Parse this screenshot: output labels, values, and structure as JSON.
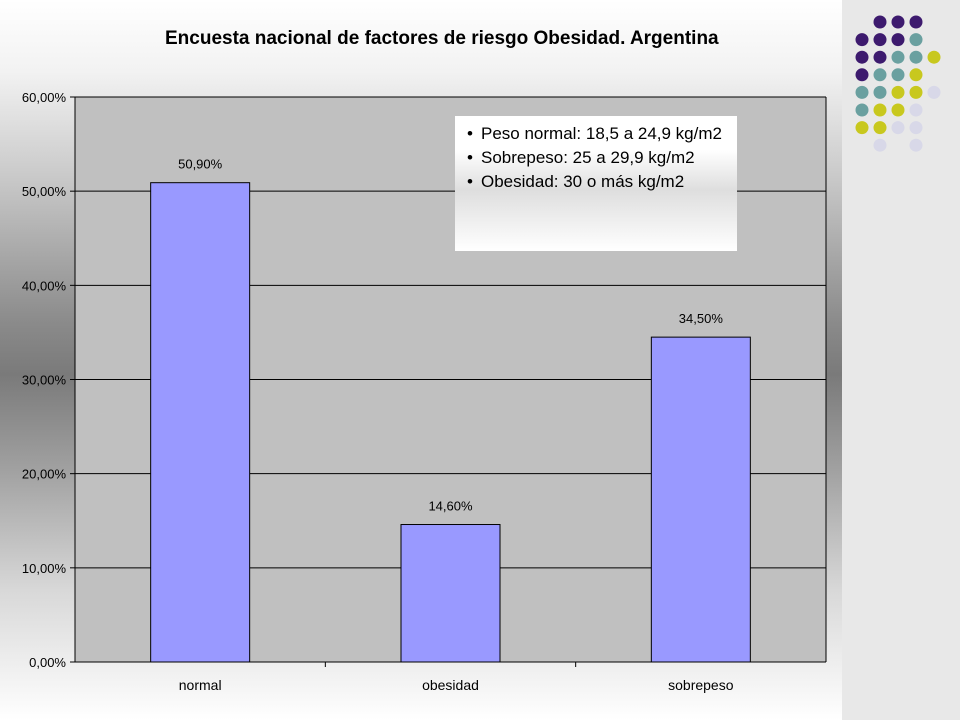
{
  "title": "Encuesta nacional de factores de riesgo Obesidad. Argentina",
  "notes": [
    "Peso normal: 18,5 a 24,9 kg/m2",
    "Sobrepeso: 25 a 29,9 kg/m2",
    "Obesidad: 30 o más kg/m2"
  ],
  "colors": {
    "bar": "#9999ff",
    "plot_bg": "#c0c0c0",
    "dot_purple": "#3d1a6e",
    "dot_teal": "#6aa0a0",
    "dot_yellow": "#c8c81e",
    "dot_lavender": "#d8d8e8"
  },
  "chart_data": {
    "type": "bar",
    "title": "Encuesta nacional de factores de riesgo Obesidad. Argentina",
    "categories": [
      "normal",
      "obesidad",
      "sobrepeso"
    ],
    "values": [
      50.9,
      14.6,
      34.5
    ],
    "data_labels": [
      "50,90%",
      "14,60%",
      "34,50%"
    ],
    "y_ticks": [
      "0,00%",
      "10,00%",
      "20,00%",
      "30,00%",
      "40,00%",
      "50,00%",
      "60,00%"
    ],
    "ylim": [
      0,
      60
    ],
    "grid": true,
    "xlabel": "",
    "ylabel": ""
  }
}
